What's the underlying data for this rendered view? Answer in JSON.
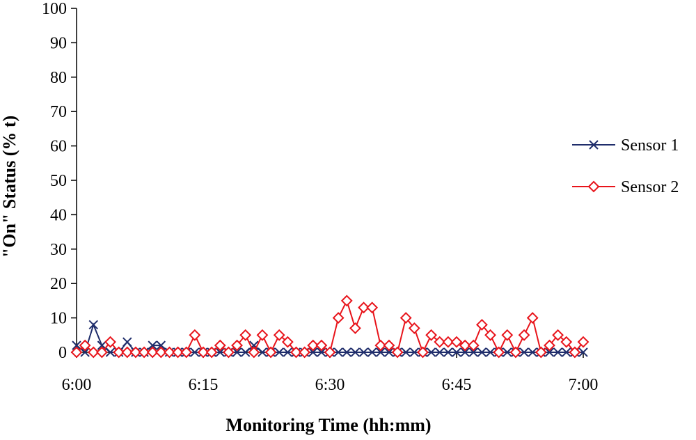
{
  "chart_data": {
    "type": "line",
    "xlabel": "Monitoring Time (hh:mm)",
    "ylabel": "\"On\" Status (% t)",
    "x_unit": "minutes",
    "xlim": [
      0,
      60
    ],
    "ylim": [
      0,
      100
    ],
    "y_ticks": [
      0,
      10,
      20,
      30,
      40,
      50,
      60,
      70,
      80,
      90,
      100
    ],
    "x_ticks": [
      {
        "value": 0,
        "label": "6:00"
      },
      {
        "value": 15,
        "label": "6:15"
      },
      {
        "value": 30,
        "label": "6:30"
      },
      {
        "value": 45,
        "label": "6:45"
      },
      {
        "value": 60,
        "label": "7:00"
      }
    ],
    "grid": false,
    "legend_position": "right",
    "x": [
      0,
      1,
      2,
      3,
      4,
      5,
      6,
      7,
      8,
      9,
      10,
      11,
      12,
      13,
      14,
      15,
      16,
      17,
      18,
      19,
      20,
      21,
      22,
      23,
      24,
      25,
      26,
      27,
      28,
      29,
      30,
      31,
      32,
      33,
      34,
      35,
      36,
      37,
      38,
      39,
      40,
      41,
      42,
      43,
      44,
      45,
      46,
      47,
      48,
      49,
      50,
      51,
      52,
      53,
      54,
      55,
      56,
      57,
      58,
      59,
      60
    ],
    "series": [
      {
        "name": "Sensor 1",
        "color": "#1f2d6b",
        "marker": "x",
        "values": [
          2,
          0,
          8,
          2,
          0,
          0,
          3,
          0,
          0,
          2,
          2,
          0,
          0,
          0,
          0,
          0,
          0,
          0,
          0,
          0,
          0,
          2,
          0,
          0,
          0,
          0,
          0,
          0,
          0,
          0,
          0,
          0,
          0,
          0,
          0,
          0,
          0,
          0,
          0,
          0,
          0,
          0,
          0,
          0,
          0,
          0,
          0,
          0,
          0,
          0,
          0,
          0,
          0,
          0,
          0,
          0,
          0,
          0,
          0,
          0,
          0
        ]
      },
      {
        "name": "Sensor 2",
        "color": "#e8141b",
        "marker": "diamond",
        "values": [
          0,
          2,
          0,
          0,
          3,
          0,
          0,
          0,
          0,
          0,
          0,
          0,
          0,
          0,
          5,
          0,
          0,
          2,
          0,
          2,
          5,
          0,
          5,
          0,
          5,
          3,
          0,
          0,
          2,
          2,
          0,
          10,
          15,
          7,
          13,
          13,
          2,
          2,
          0,
          10,
          7,
          0,
          5,
          3,
          3,
          3,
          2,
          2,
          8,
          5,
          0,
          5,
          0,
          5,
          10,
          0,
          2,
          5,
          3,
          0,
          3
        ]
      }
    ]
  }
}
